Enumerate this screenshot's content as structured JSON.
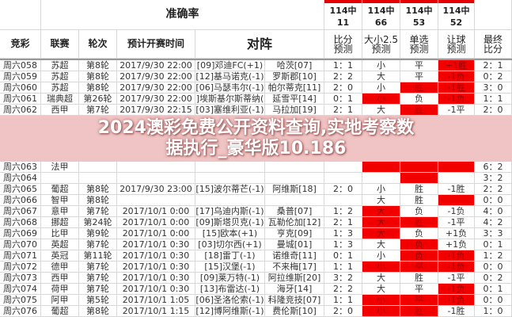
{
  "header": {
    "accuracy_title": "准确率",
    "hits": [
      {
        "label": "114中",
        "value": "11"
      },
      {
        "label": "114中",
        "value": "66"
      },
      {
        "label": "114中",
        "value": "53"
      },
      {
        "label": "114中",
        "value": "52"
      }
    ],
    "columns": [
      "竞彩",
      "联赛",
      "轮次",
      "预计开赛时间",
      "对阵"
    ],
    "pred_columns": [
      [
        "比分",
        "预测"
      ],
      [
        "大小2.5",
        "预测"
      ],
      [
        "单选",
        "预测"
      ],
      [
        "让球",
        "预测"
      ],
      [
        "最终",
        "比分"
      ]
    ]
  },
  "colors": {
    "highlight": "#f20000",
    "overlay_band": "#f0aaaa"
  },
  "rows": [
    {
      "id": "周六058",
      "league": "苏超",
      "round": "第8轮",
      "time": "2017/9/30 22:00",
      "home": "[09]邓迪FC(+1)",
      "away": "哈茨[07]",
      "score": "1：1",
      "ou": "小",
      "pick": "平",
      "hcp": "+1胜",
      "final": "2：1",
      "red": [
        0,
        0,
        1
      ]
    },
    {
      "id": "周六059",
      "league": "苏超",
      "round": "第8轮",
      "time": "2017/9/30 22:00",
      "home": "[12]基马诺克(-1)",
      "away": "罗斯郡[10]",
      "score": "2：2",
      "ou": "大",
      "pick": "平",
      "hcp": "-1负",
      "final": "0：2",
      "red": [
        0,
        0,
        1
      ]
    },
    {
      "id": "周六060",
      "league": "苏超",
      "round": "第8轮",
      "time": "2017/9/30 22:00",
      "home": "[06]马瑟韦尔(-1)",
      "away": "帕尔蒂克[11]",
      "score": "2：0",
      "ou": "小",
      "pick": "胜",
      "hcp": "-1胜",
      "final": "3：0",
      "red": [
        0,
        1,
        1
      ]
    },
    {
      "id": "周六061",
      "league": "瑞典超",
      "round": "第26轮",
      "time": "2017/9/30 22:00",
      "home": "]埃斯基尔斯蒂纳(",
      "away": "延雪平[14]",
      "score": "0：1",
      "ou": "小",
      "pick": "负",
      "hcp": "-1负",
      "final": "1：1",
      "red": [
        1,
        0,
        1
      ]
    },
    {
      "id": "周六062",
      "league": "西甲",
      "round": "第7轮",
      "time": "2017/9/30 22:15",
      "home": "[03]塞维利亚(-1)",
      "away": "马拉加[19]",
      "score": "2：1",
      "ou": "大",
      "pick": "胜",
      "hcp": "-1平",
      "final": "2：0",
      "red": [
        0,
        1,
        0
      ]
    },
    {
      "id": "周六063",
      "league": "法甲",
      "round": "",
      "time": "",
      "home": "",
      "away": "",
      "score": "",
      "ou": "",
      "pick": "",
      "hcp": "",
      "final": "6：2",
      "red": [
        1,
        1,
        1
      ]
    },
    {
      "id": "周六064",
      "league": "",
      "round": "",
      "time": "",
      "home": "",
      "away": "",
      "score": "",
      "ou": "",
      "pick": "",
      "hcp": "",
      "final": "3：2",
      "red": [
        0,
        1,
        0
      ]
    },
    {
      "id": "周六065",
      "league": "葡超",
      "round": "第8轮",
      "time": "2017/9/30 23:00",
      "home": "[15]波尔蒂芒(-1)",
      "away": "阿维斯[18]",
      "score": "2：0",
      "ou": "小",
      "pick": "胜",
      "hcp": "-1胜",
      "final": "2：2",
      "red": [
        0,
        0,
        0
      ]
    },
    {
      "id": "周六066",
      "league": "智甲",
      "round": "第8轮",
      "time": "",
      "home": "",
      "away": "",
      "score": "",
      "ou": "大",
      "pick": "胜",
      "hcp": "",
      "final": "0：0",
      "red": [
        0,
        0,
        1
      ]
    },
    {
      "id": "周六067",
      "league": "意甲",
      "round": "第7轮",
      "time": "2017/10/1 0:00",
      "home": "[17]乌迪内斯(-1)",
      "away": "桑普[07]",
      "score": "1：2",
      "ou": "大",
      "pick": "负",
      "hcp": "-1负",
      "final": "4：0",
      "red": [
        1,
        0,
        0
      ]
    },
    {
      "id": "周六068",
      "league": "挪超",
      "round": "第24轮",
      "time": "2017/10/1 0:00",
      "home": "[09]斯塔贝克(-1)",
      "away": "瓦勒伦加[12]",
      "score": "2：1",
      "ou": "大",
      "pick": "胜",
      "hcp": "-1平",
      "final": "4：2",
      "red": [
        1,
        1,
        0
      ]
    },
    {
      "id": "周六069",
      "league": "比甲",
      "round": "第9轮",
      "time": "2017/10/1 0:00",
      "home": "[15]欧本(+1)",
      "away": "亨克[09]",
      "score": "1：3",
      "ou": "大",
      "pick": "负",
      "hcp": "+1负",
      "final": "3：3",
      "red": [
        1,
        0,
        0
      ]
    },
    {
      "id": "周六070",
      "league": "英超",
      "round": "第7轮",
      "time": "2017/10/1 0:30",
      "home": "[03]切尔西(+1)",
      "away": "曼城[01]",
      "score": "1：3",
      "ou": "大",
      "pick": "负",
      "hcp": "+1负",
      "final": "0：1",
      "red": [
        0,
        1,
        0
      ]
    },
    {
      "id": "周六071",
      "league": "英冠",
      "round": "第11轮",
      "time": "2017/10/1 0:30",
      "home": "[18]雷丁(-1)",
      "away": "诺维奇[11]",
      "score": "0：1",
      "ou": "小",
      "pick": "负",
      "hcp": "-1负",
      "final": "1：2",
      "red": [
        0,
        1,
        1
      ]
    },
    {
      "id": "周六072",
      "league": "德甲",
      "round": "第7轮",
      "time": "2017/10/1 0:30",
      "home": "[15]汉堡(-1)",
      "away": "不来梅[17]",
      "score": "1：1",
      "ou": "小",
      "pick": "平",
      "hcp": "-1负",
      "final": "0：0",
      "red": [
        1,
        1,
        1
      ]
    },
    {
      "id": "周六073",
      "league": "西甲",
      "round": "第7轮",
      "time": "2017/10/1 0:30",
      "home": "[09]莱万特(-1)",
      "away": "阿拉维斯[20]",
      "score": "3：2",
      "ou": "大",
      "pick": "胜",
      "hcp": "-1平",
      "final": "0：2",
      "red": [
        0,
        0,
        0
      ]
    },
    {
      "id": "周六074",
      "league": "荷甲",
      "round": "第7轮",
      "time": "2017/10/1 0:30",
      "home": "[13]布雷达(-1)",
      "away": "海牙[14]",
      "score": "2：2",
      "ou": "大",
      "pick": "平",
      "hcp": "-1负",
      "final": "0：1",
      "red": [
        0,
        0,
        1
      ]
    },
    {
      "id": "周六075",
      "league": "阿甲",
      "round": "第5轮",
      "time": "2017/10/1 1:05",
      "home": "[06]圣洛伦索(-1)",
      "away": "科隆竞技[07]",
      "score": "1：1",
      "ou": "小",
      "pick": "平",
      "hcp": "-1负",
      "final": "0：0",
      "red": [
        1,
        1,
        1
      ]
    },
    {
      "id": "周六076",
      "league": "葡超",
      "round": "第8轮",
      "time": "2017/10/1 1:15",
      "home": "[12]博阿维斯(-1)",
      "away": "费伦斯[10]",
      "score": "2：0",
      "ou": "小",
      "pick": "胜",
      "hcp": "-1胜",
      "final": "1：0",
      "red": [
        1,
        1,
        0
      ]
    }
  ],
  "overlay": {
    "line1": "2024澳彩免费公开资料查询,实地考察数",
    "line2": "据执行_豪华版10.186"
  }
}
